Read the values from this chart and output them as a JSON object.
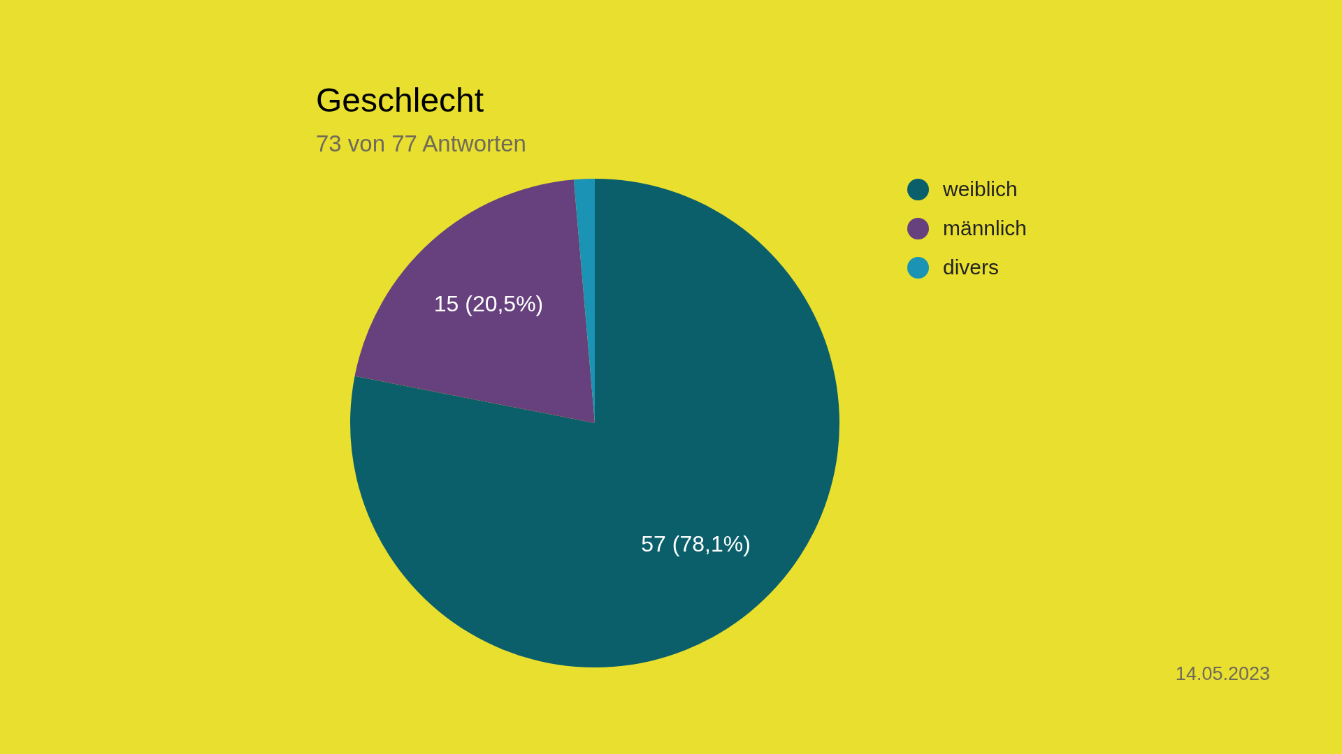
{
  "chart_data": {
    "type": "pie",
    "title": "Geschlecht",
    "subtitle": "73 von 77 Antworten",
    "categories": [
      "weiblich",
      "männlich",
      "divers"
    ],
    "values": [
      57,
      15,
      1
    ],
    "value_labels": [
      "57 (78,1%)",
      "15 (20,5%)",
      null
    ],
    "colors": [
      "#0a5f6b",
      "#67417d",
      "#1a93b5"
    ],
    "legend": "right",
    "annotations": [
      "14.05.2023"
    ]
  }
}
